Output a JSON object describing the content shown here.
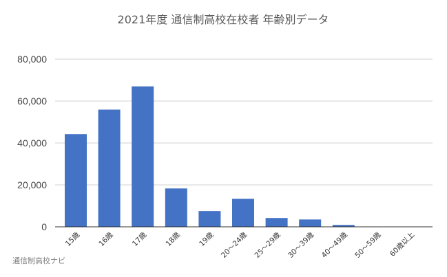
{
  "chart_data": {
    "type": "bar",
    "title": "2021年度 通信制高校在校者 年齢別データ",
    "categories": [
      "15歳",
      "16歳",
      "17歳",
      "18歳",
      "19歳",
      "20～24歳",
      "25～29歳",
      "30～39歳",
      "40～49歳",
      "50～59歳",
      "60歳以上"
    ],
    "values": [
      44200,
      55900,
      67000,
      18300,
      7500,
      13400,
      4200,
      3500,
      900,
      150,
      100
    ],
    "ylim": [
      0,
      80000
    ],
    "yticks": [
      "0",
      "20,000",
      "40,000",
      "60,000",
      "80,000"
    ],
    "ytick_values": [
      0,
      20000,
      40000,
      60000,
      80000
    ],
    "grid": true,
    "bar_color": "#4472c4"
  },
  "source_label": "通信制高校ナビ"
}
